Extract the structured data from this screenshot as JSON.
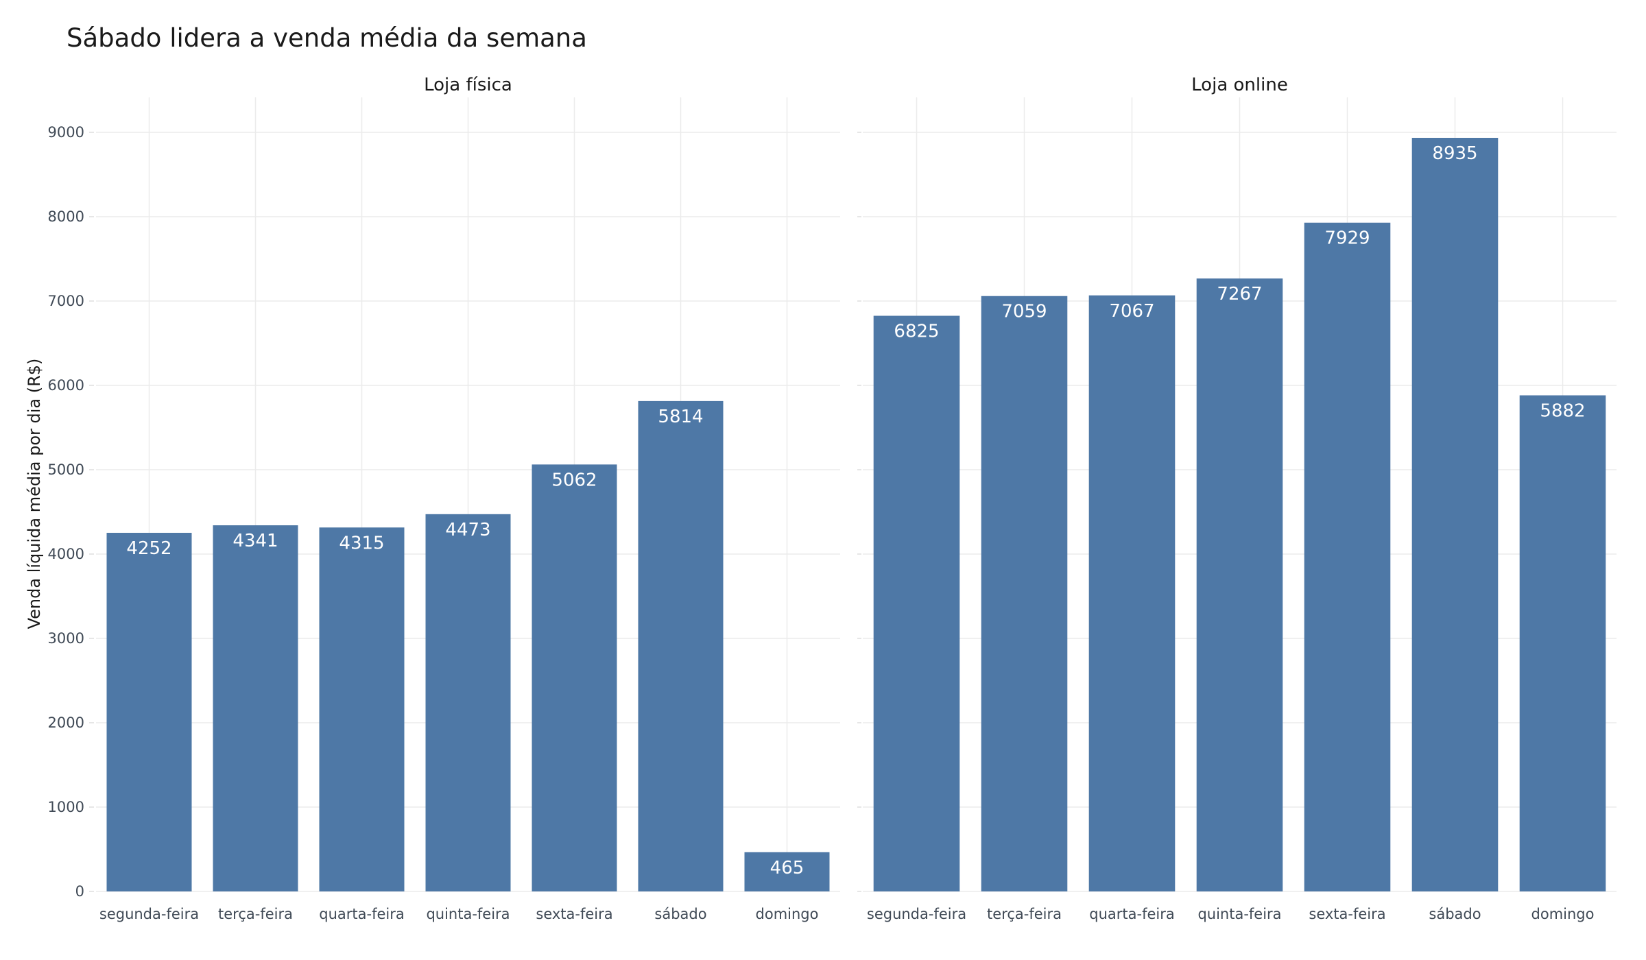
{
  "chart_data": {
    "type": "bar",
    "title": "Sábado lidera a venda média da semana",
    "ylabel": "Venda líquida média por dia (R$)",
    "xlabel": "",
    "ylim": [
      0,
      9400
    ],
    "yticks": [
      0,
      1000,
      2000,
      3000,
      4000,
      5000,
      6000,
      7000,
      8000,
      9000
    ],
    "categories": [
      "segunda-feira",
      "terça-feira",
      "quarta-feira",
      "quinta-feira",
      "sexta-feira",
      "sábado",
      "domingo"
    ],
    "bar_color": "#4e78a6",
    "grid": true,
    "legend": "none",
    "facets": [
      {
        "name": "Loja física",
        "values": [
          4252,
          4341,
          4315,
          4473,
          5062,
          5814,
          465
        ]
      },
      {
        "name": "Loja online",
        "values": [
          6825,
          7059,
          7067,
          7267,
          7929,
          8935,
          5882
        ]
      }
    ]
  }
}
